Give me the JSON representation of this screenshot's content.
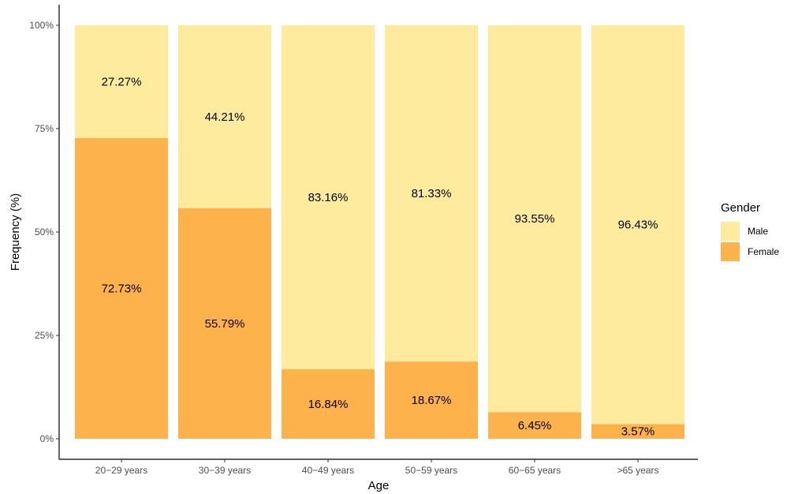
{
  "chart_data": {
    "type": "bar",
    "stacked": true,
    "categories": [
      "20−29 years",
      "30−39 years",
      "40−49 years",
      "50−59 years",
      "60−65 years",
      ">65 years"
    ],
    "series": [
      {
        "name": "Female",
        "values": [
          72.73,
          55.79,
          16.84,
          18.67,
          6.45,
          3.57
        ],
        "labels": [
          "72.73%",
          "55.79%",
          "16.84%",
          "18.67%",
          "6.45%",
          "3.57%"
        ],
        "color": "#FDB24C"
      },
      {
        "name": "Male",
        "values": [
          27.27,
          44.21,
          83.16,
          81.33,
          93.55,
          96.43
        ],
        "labels": [
          "27.27%",
          "44.21%",
          "83.16%",
          "81.33%",
          "93.55%",
          "96.43%"
        ],
        "color": "#FEEB9E"
      }
    ],
    "xlabel": "Age",
    "ylabel": "Frequency (%)",
    "ylim": [
      0,
      100
    ],
    "yticks": [
      0,
      25,
      50,
      75,
      100
    ],
    "ytick_labels": [
      "0%",
      "25%",
      "50%",
      "75%",
      "100%"
    ],
    "legend": {
      "title": "Gender",
      "placement": "right",
      "order": [
        "Male",
        "Female"
      ]
    },
    "grid": false
  }
}
